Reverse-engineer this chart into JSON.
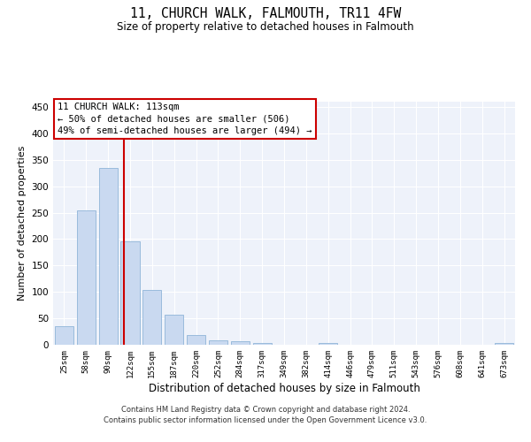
{
  "title": "11, CHURCH WALK, FALMOUTH, TR11 4FW",
  "subtitle": "Size of property relative to detached houses in Falmouth",
  "xlabel": "Distribution of detached houses by size in Falmouth",
  "ylabel": "Number of detached properties",
  "bar_labels": [
    "25sqm",
    "58sqm",
    "90sqm",
    "122sqm",
    "155sqm",
    "187sqm",
    "220sqm",
    "252sqm",
    "284sqm",
    "317sqm",
    "349sqm",
    "382sqm",
    "414sqm",
    "446sqm",
    "479sqm",
    "511sqm",
    "543sqm",
    "576sqm",
    "608sqm",
    "641sqm",
    "673sqm"
  ],
  "bar_values": [
    35,
    255,
    335,
    195,
    103,
    57,
    18,
    9,
    6,
    3,
    0,
    0,
    3,
    0,
    0,
    0,
    0,
    0,
    0,
    0,
    3
  ],
  "bar_color": "#c9d9f0",
  "bar_edge_color": "#8fb4d8",
  "background_color": "#eef2fa",
  "grid_color": "#ffffff",
  "vline_color": "#cc0000",
  "ylim": [
    0,
    460
  ],
  "yticks": [
    0,
    50,
    100,
    150,
    200,
    250,
    300,
    350,
    400,
    450
  ],
  "annotation_text": "11 CHURCH WALK: 113sqm\n← 50% of detached houses are smaller (506)\n49% of semi-detached houses are larger (494) →",
  "footer_line1": "Contains HM Land Registry data © Crown copyright and database right 2024.",
  "footer_line2": "Contains public sector information licensed under the Open Government Licence v3.0."
}
